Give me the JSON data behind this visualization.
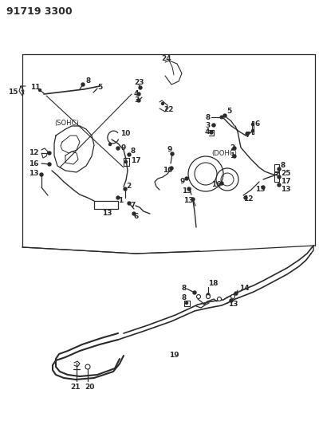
{
  "title": "91719 3300",
  "bg_color": "#ffffff",
  "line_color": "#2a2a2a",
  "title_fontsize": 9,
  "label_fontsize": 6.5,
  "fig_width": 4.0,
  "fig_height": 5.33,
  "dpi": 100
}
